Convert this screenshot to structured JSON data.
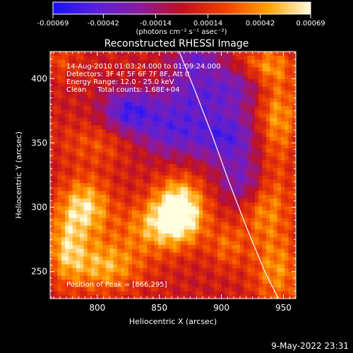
{
  "chart_data": {
    "type": "heatmap",
    "title": "Reconstructed RHESSI Image",
    "xlabel": "Heliocentric X (arcsec)",
    "ylabel": "Heliocentric Y (arcsec)",
    "xlim": [
      762,
      960
    ],
    "ylim": [
      229,
      421
    ],
    "x_ticks": [
      800,
      850,
      900,
      950
    ],
    "y_ticks": [
      250,
      300,
      350,
      400
    ],
    "colorbar": {
      "ticks": [
        -0.00069,
        -0.00042,
        -0.00014,
        0.00014,
        0.00042,
        0.00069
      ],
      "tick_labels": [
        "-0.00069",
        "-0.00042",
        "-0.00014",
        "0.00014",
        "0.00042",
        "0.00069"
      ],
      "unit_label": "(photons cm⁻² s⁻¹ asec⁻²)",
      "colors": [
        "#1a10ff",
        "#5a20d8",
        "#8a1aa0",
        "#c01020",
        "#f04000",
        "#ffa000",
        "#ffffe0"
      ]
    },
    "annotations": [
      "14-Aug-2010 01:03:24.000 to 01:09:24.000",
      "Detectors: 3F 4F 5F 6F 7F 8F, Att 0",
      "Energy Range: 12.0 - 25.0 keV",
      "Clean     Total counts: 1.68E+04"
    ],
    "peak_label": "Position of Peak = [866,295]",
    "peak_position": [
      866,
      295
    ],
    "limb_line": [
      [
        866,
        421
      ],
      [
        879,
        390
      ],
      [
        893,
        355
      ],
      [
        906,
        320
      ],
      [
        920,
        285
      ],
      [
        935,
        250
      ],
      [
        946,
        229
      ]
    ],
    "hotspots": [
      {
        "x": 866,
        "y": 300,
        "sx": 14,
        "sy": 16,
        "value": 0.00069
      },
      {
        "x": 850,
        "y": 285,
        "sx": 22,
        "sy": 14,
        "value": 0.00042
      },
      {
        "x": 790,
        "y": 300,
        "sx": 14,
        "sy": 16,
        "value": 0.00055
      },
      {
        "x": 805,
        "y": 255,
        "sx": 22,
        "sy": 14,
        "value": 0.00045
      },
      {
        "x": 775,
        "y": 270,
        "sx": 10,
        "sy": 18,
        "value": 0.0004
      },
      {
        "x": 935,
        "y": 305,
        "sx": 14,
        "sy": 22,
        "value": 0.0004
      },
      {
        "x": 945,
        "y": 250,
        "sx": 14,
        "sy": 20,
        "value": 0.00035
      },
      {
        "x": 945,
        "y": 370,
        "sx": 12,
        "sy": 22,
        "value": 0.0004
      },
      {
        "x": 935,
        "y": 410,
        "sx": 16,
        "sy": 10,
        "value": 0.00035
      },
      {
        "x": 905,
        "y": 270,
        "sx": 10,
        "sy": 12,
        "value": 0.00025
      },
      {
        "x": 800,
        "y": 350,
        "sx": 22,
        "sy": 12,
        "value": 0.0002
      },
      {
        "x": 770,
        "y": 415,
        "sx": 10,
        "sy": 10,
        "value": 0.00018
      },
      {
        "x": 825,
        "y": 375,
        "sx": 15,
        "sy": 12,
        "value": -0.00055
      },
      {
        "x": 860,
        "y": 360,
        "sx": 20,
        "sy": 15,
        "value": -0.00045
      },
      {
        "x": 880,
        "y": 390,
        "sx": 20,
        "sy": 14,
        "value": -0.0004
      },
      {
        "x": 905,
        "y": 355,
        "sx": 18,
        "sy": 15,
        "value": -0.0005
      },
      {
        "x": 920,
        "y": 320,
        "sx": 14,
        "sy": 14,
        "value": -0.00045
      },
      {
        "x": 915,
        "y": 395,
        "sx": 15,
        "sy": 12,
        "value": -0.0003
      },
      {
        "x": 880,
        "y": 415,
        "sx": 14,
        "sy": 8,
        "value": -0.00035
      }
    ]
  },
  "timestamp": "9-May-2022 23:31"
}
